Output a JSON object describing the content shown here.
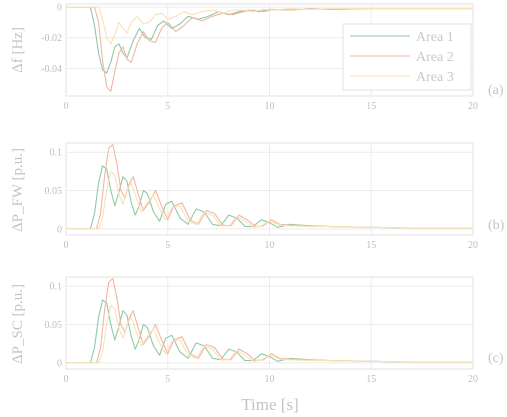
{
  "figure": {
    "xlabel": "Time [s]"
  },
  "chart_data": [
    {
      "type": "line",
      "panel_label": "(a)",
      "ylabel": "Δf [Hz]",
      "xlim": [
        0,
        20
      ],
      "ylim": [
        -0.058,
        0.002
      ],
      "xticks": [
        0,
        5,
        10,
        15,
        20
      ],
      "yticks": [
        0,
        -0.02,
        -0.04
      ],
      "ytick_labels": [
        "0",
        "-0.02",
        "-0.04"
      ],
      "grid": true,
      "legend": {
        "position": "top-right",
        "entries": [
          "Area 1",
          "Area 2",
          "Area 3"
        ]
      },
      "series": [
        {
          "name": "Area 1",
          "color": "#8fc9a8",
          "x": [
            0,
            1.2,
            1.4,
            1.6,
            1.8,
            2.0,
            2.2,
            2.4,
            2.6,
            2.8,
            3.0,
            3.3,
            3.6,
            3.9,
            4.2,
            4.5,
            4.8,
            5.2,
            5.6,
            6.0,
            6.5,
            7.0,
            7.5,
            8.0,
            8.5,
            9.0,
            9.5,
            10.0,
            11.0,
            12.0,
            13.0,
            15.0,
            17.0,
            20.0
          ],
          "y": [
            0,
            0,
            -0.012,
            -0.03,
            -0.041,
            -0.043,
            -0.036,
            -0.026,
            -0.024,
            -0.03,
            -0.033,
            -0.022,
            -0.014,
            -0.02,
            -0.021,
            -0.012,
            -0.009,
            -0.014,
            -0.011,
            -0.006,
            -0.008,
            -0.006,
            -0.003,
            -0.005,
            -0.003,
            -0.002,
            -0.003,
            -0.0015,
            -0.002,
            -0.001,
            -0.0015,
            -0.001,
            -0.001,
            -0.001
          ]
        },
        {
          "name": "Area 2",
          "color": "#f2b6a2",
          "x": [
            0,
            1.4,
            1.6,
            1.8,
            2.0,
            2.2,
            2.4,
            2.6,
            2.8,
            3.0,
            3.2,
            3.5,
            3.8,
            4.1,
            4.4,
            4.7,
            5.0,
            5.4,
            5.8,
            6.2,
            6.7,
            7.2,
            7.7,
            8.2,
            8.7,
            9.2,
            9.7,
            10.2,
            11.0,
            12.0,
            13.0,
            15.0,
            17.0,
            20.0
          ],
          "y": [
            0,
            0,
            -0.01,
            -0.035,
            -0.052,
            -0.055,
            -0.042,
            -0.03,
            -0.026,
            -0.034,
            -0.036,
            -0.024,
            -0.016,
            -0.022,
            -0.023,
            -0.014,
            -0.01,
            -0.016,
            -0.012,
            -0.007,
            -0.009,
            -0.006,
            -0.004,
            -0.005,
            -0.003,
            -0.002,
            -0.003,
            -0.0015,
            -0.002,
            -0.001,
            -0.0015,
            -0.001,
            -0.001,
            -0.001
          ]
        },
        {
          "name": "Area 3",
          "color": "#f7e3b4",
          "x": [
            0,
            1.6,
            1.8,
            2.0,
            2.2,
            2.4,
            2.6,
            2.8,
            3.0,
            3.2,
            3.5,
            3.8,
            4.1,
            4.4,
            4.7,
            5.0,
            5.4,
            5.8,
            6.2,
            6.7,
            7.2,
            7.7,
            8.2,
            8.7,
            9.2,
            9.7,
            10.2,
            11.0,
            12.0,
            13.0,
            15.0,
            17.0,
            20.0
          ],
          "y": [
            0,
            0,
            -0.008,
            -0.02,
            -0.024,
            -0.018,
            -0.01,
            -0.014,
            -0.017,
            -0.01,
            -0.006,
            -0.011,
            -0.01,
            -0.005,
            -0.004,
            -0.008,
            -0.006,
            -0.003,
            -0.005,
            -0.003,
            -0.002,
            -0.004,
            -0.002,
            -0.002,
            -0.003,
            -0.0015,
            -0.002,
            -0.001,
            -0.0015,
            -0.001,
            -0.001,
            -0.001,
            -0.001
          ]
        }
      ]
    },
    {
      "type": "line",
      "panel_label": "(b)",
      "ylabel": "ΔP_FW [p.u.]",
      "xlim": [
        0,
        20
      ],
      "ylim": [
        -0.008,
        0.112
      ],
      "xticks": [
        0,
        5,
        10,
        15,
        20
      ],
      "yticks": [
        0,
        0.05,
        0.1
      ],
      "ytick_labels": [
        "0",
        "0.05",
        "0.1"
      ],
      "grid": true,
      "series": [
        {
          "name": "Area 1",
          "color": "#8fc9a8",
          "x": [
            0,
            1.2,
            1.4,
            1.6,
            1.8,
            2.0,
            2.2,
            2.4,
            2.6,
            2.8,
            3.0,
            3.2,
            3.4,
            3.6,
            3.8,
            4.0,
            4.3,
            4.6,
            4.9,
            5.2,
            5.6,
            6.0,
            6.4,
            6.8,
            7.2,
            7.6,
            8.0,
            8.4,
            8.8,
            9.2,
            9.6,
            10.0,
            10.4,
            11.0,
            12.0,
            13.0,
            15.0,
            17.0,
            20.0
          ],
          "y": [
            0,
            0,
            0.02,
            0.06,
            0.082,
            0.078,
            0.05,
            0.03,
            0.048,
            0.068,
            0.062,
            0.035,
            0.018,
            0.03,
            0.05,
            0.046,
            0.022,
            0.01,
            0.032,
            0.036,
            0.014,
            0.006,
            0.026,
            0.022,
            0.006,
            0.004,
            0.018,
            0.014,
            0.003,
            0.003,
            0.012,
            0.008,
            0.002,
            0.006,
            0.004,
            0.003,
            0.002,
            0.001,
            0.001
          ]
        },
        {
          "name": "Area 2",
          "color": "#f2b6a2",
          "x": [
            0,
            1.5,
            1.7,
            1.9,
            2.1,
            2.3,
            2.5,
            2.7,
            2.9,
            3.1,
            3.3,
            3.5,
            3.8,
            4.1,
            4.4,
            4.7,
            5.0,
            5.3,
            5.7,
            6.1,
            6.5,
            6.9,
            7.3,
            7.7,
            8.1,
            8.5,
            8.9,
            9.3,
            9.7,
            10.1,
            10.5,
            11.0,
            12.0,
            13.0,
            15.0,
            17.0,
            20.0
          ],
          "y": [
            0,
            0,
            0.02,
            0.07,
            0.105,
            0.11,
            0.085,
            0.05,
            0.04,
            0.058,
            0.068,
            0.05,
            0.024,
            0.035,
            0.05,
            0.03,
            0.012,
            0.03,
            0.034,
            0.012,
            0.006,
            0.024,
            0.02,
            0.005,
            0.004,
            0.018,
            0.012,
            0.003,
            0.004,
            0.012,
            0.006,
            0.005,
            0.004,
            0.003,
            0.002,
            0.001,
            0.001
          ]
        },
        {
          "name": "Area 3",
          "color": "#f7e3b4",
          "x": [
            0,
            1.6,
            1.8,
            2.0,
            2.2,
            2.4,
            2.6,
            2.8,
            3.0,
            3.2,
            3.4,
            3.7,
            4.0,
            4.3,
            4.6,
            4.9,
            5.2,
            5.6,
            6.0,
            6.4,
            6.8,
            7.2,
            7.6,
            8.0,
            8.4,
            8.8,
            9.2,
            9.6,
            10.0,
            10.5,
            11.0,
            12.0,
            13.0,
            15.0,
            17.0,
            20.0
          ],
          "y": [
            0,
            0,
            0.015,
            0.05,
            0.075,
            0.07,
            0.045,
            0.032,
            0.05,
            0.06,
            0.045,
            0.022,
            0.034,
            0.045,
            0.026,
            0.012,
            0.028,
            0.03,
            0.01,
            0.006,
            0.022,
            0.018,
            0.004,
            0.004,
            0.016,
            0.01,
            0.002,
            0.004,
            0.01,
            0.005,
            0.004,
            0.003,
            0.003,
            0.002,
            0.001,
            0.001
          ]
        }
      ]
    },
    {
      "type": "line",
      "panel_label": "(c)",
      "ylabel": "ΔP_SC [p.u.]",
      "xlim": [
        0,
        20
      ],
      "ylim": [
        -0.008,
        0.112
      ],
      "xticks": [
        0,
        5,
        10,
        15,
        20
      ],
      "yticks": [
        0,
        0.05,
        0.1
      ],
      "ytick_labels": [
        "0",
        "0.05",
        "0.1"
      ],
      "grid": true,
      "series": [
        {
          "name": "Area 1",
          "color": "#8fc9a8",
          "x": [
            0,
            1.2,
            1.4,
            1.6,
            1.8,
            2.0,
            2.2,
            2.4,
            2.6,
            2.8,
            3.0,
            3.2,
            3.4,
            3.6,
            3.8,
            4.0,
            4.3,
            4.6,
            4.9,
            5.2,
            5.6,
            6.0,
            6.4,
            6.8,
            7.2,
            7.6,
            8.0,
            8.4,
            8.8,
            9.2,
            9.6,
            10.0,
            10.4,
            11.0,
            12.0,
            13.0,
            15.0,
            17.0,
            20.0
          ],
          "y": [
            0,
            0,
            0.02,
            0.06,
            0.082,
            0.078,
            0.05,
            0.03,
            0.048,
            0.068,
            0.062,
            0.035,
            0.018,
            0.03,
            0.05,
            0.046,
            0.022,
            0.01,
            0.032,
            0.036,
            0.014,
            0.006,
            0.026,
            0.022,
            0.006,
            0.004,
            0.018,
            0.014,
            0.003,
            0.003,
            0.012,
            0.008,
            0.002,
            0.006,
            0.004,
            0.003,
            0.002,
            0.001,
            0.001
          ]
        },
        {
          "name": "Area 2",
          "color": "#f2b6a2",
          "x": [
            0,
            1.5,
            1.7,
            1.9,
            2.1,
            2.3,
            2.5,
            2.7,
            2.9,
            3.1,
            3.3,
            3.5,
            3.8,
            4.1,
            4.4,
            4.7,
            5.0,
            5.3,
            5.7,
            6.1,
            6.5,
            6.9,
            7.3,
            7.7,
            8.1,
            8.5,
            8.9,
            9.3,
            9.7,
            10.1,
            10.5,
            11.0,
            12.0,
            13.0,
            15.0,
            17.0,
            20.0
          ],
          "y": [
            0,
            0,
            0.02,
            0.07,
            0.105,
            0.11,
            0.085,
            0.05,
            0.04,
            0.058,
            0.068,
            0.05,
            0.024,
            0.035,
            0.05,
            0.03,
            0.012,
            0.03,
            0.034,
            0.012,
            0.006,
            0.024,
            0.02,
            0.005,
            0.004,
            0.018,
            0.012,
            0.003,
            0.004,
            0.012,
            0.006,
            0.005,
            0.004,
            0.003,
            0.002,
            0.001,
            0.001
          ]
        },
        {
          "name": "Area 3",
          "color": "#f7e3b4",
          "x": [
            0,
            1.6,
            1.8,
            2.0,
            2.2,
            2.4,
            2.6,
            2.8,
            3.0,
            3.2,
            3.4,
            3.7,
            4.0,
            4.3,
            4.6,
            4.9,
            5.2,
            5.6,
            6.0,
            6.4,
            6.8,
            7.2,
            7.6,
            8.0,
            8.4,
            8.8,
            9.2,
            9.6,
            10.0,
            10.5,
            11.0,
            12.0,
            13.0,
            15.0,
            17.0,
            20.0
          ],
          "y": [
            0,
            0,
            0.015,
            0.05,
            0.075,
            0.07,
            0.045,
            0.032,
            0.05,
            0.06,
            0.045,
            0.022,
            0.034,
            0.045,
            0.026,
            0.012,
            0.028,
            0.03,
            0.01,
            0.006,
            0.022,
            0.018,
            0.004,
            0.004,
            0.016,
            0.01,
            0.002,
            0.004,
            0.01,
            0.005,
            0.004,
            0.003,
            0.003,
            0.002,
            0.001,
            0.001
          ]
        }
      ]
    }
  ]
}
